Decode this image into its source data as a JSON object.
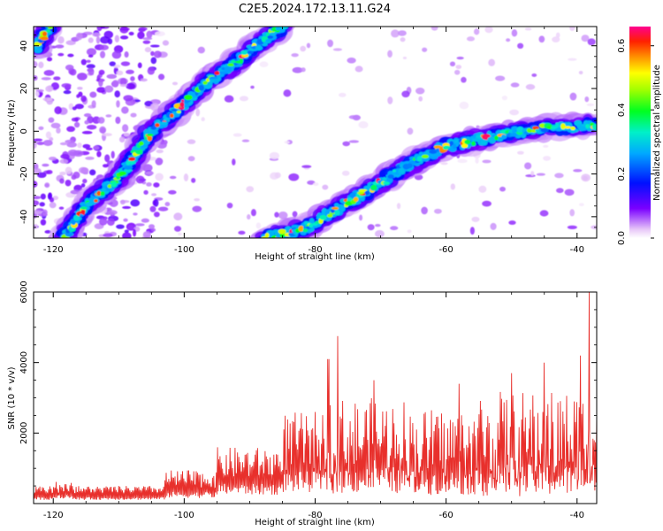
{
  "title": "C2E5.2024.172.13.11.G24",
  "chart_data": [
    {
      "type": "heatmap",
      "xlabel": "Height of straight line (km)",
      "ylabel": "Frequency (Hz)",
      "xlim": [
        -123,
        -37
      ],
      "ylim": [
        -50,
        49
      ],
      "xticks": [
        -120,
        -100,
        -80,
        -60,
        -40
      ],
      "yticks": [
        -40,
        -20,
        0,
        20,
        40
      ],
      "colorbar": {
        "label": "Normalized spectral amplitude",
        "range": [
          0,
          0.66
        ],
        "ticks": [
          0.0,
          0.2,
          0.4,
          0.6
        ],
        "tick_labels": [
          "0.0",
          "0.2",
          "0.4",
          "0.6"
        ]
      },
      "ridges": [
        {
          "points": [
            [
              -118.5,
              -50
            ],
            [
              -115,
              -35
            ],
            [
              -110,
              -22
            ],
            [
              -105,
              0
            ],
            [
              -101,
              10
            ],
            [
              -97,
              22
            ],
            [
              -93,
              30
            ],
            [
              -89,
              40
            ],
            [
              -85,
              49
            ]
          ]
        },
        {
          "points": [
            [
              -88,
              -50
            ],
            [
              -82,
              -46
            ],
            [
              -77,
              -37
            ],
            [
              -72,
              -28
            ],
            [
              -66,
              -16
            ],
            [
              -60,
              -7
            ],
            [
              -55,
              -4
            ],
            [
              -50,
              -1
            ],
            [
              -45,
              2
            ],
            [
              -40,
              2
            ],
            [
              -37,
              3
            ]
          ]
        },
        {
          "points": [
            [
              -122.5,
              39
            ],
            [
              -121.5,
              45
            ],
            [
              -120.5,
              49
            ]
          ]
        }
      ]
    },
    {
      "type": "line",
      "xlabel": "Height of straight line (km)",
      "ylabel": "SNR (10 * v/v)",
      "xlim": [
        -123,
        -37
      ],
      "ylim": [
        0,
        6000
      ],
      "xticks": [
        -120,
        -100,
        -80,
        -60,
        -40
      ],
      "yticks": [
        2000,
        4000,
        6000
      ],
      "color": "#e8302c",
      "peaks": [
        [
          -76.5,
          4750
        ],
        [
          -78,
          4100
        ],
        [
          -71,
          3500
        ],
        [
          -58,
          3400
        ],
        [
          -50,
          3700
        ],
        [
          -45,
          4000
        ],
        [
          -39.5,
          4200
        ],
        [
          -38.2,
          6000
        ]
      ]
    }
  ],
  "colors": {
    "line": "#e8302c",
    "frame": "#000000",
    "background": "#ffffff"
  }
}
